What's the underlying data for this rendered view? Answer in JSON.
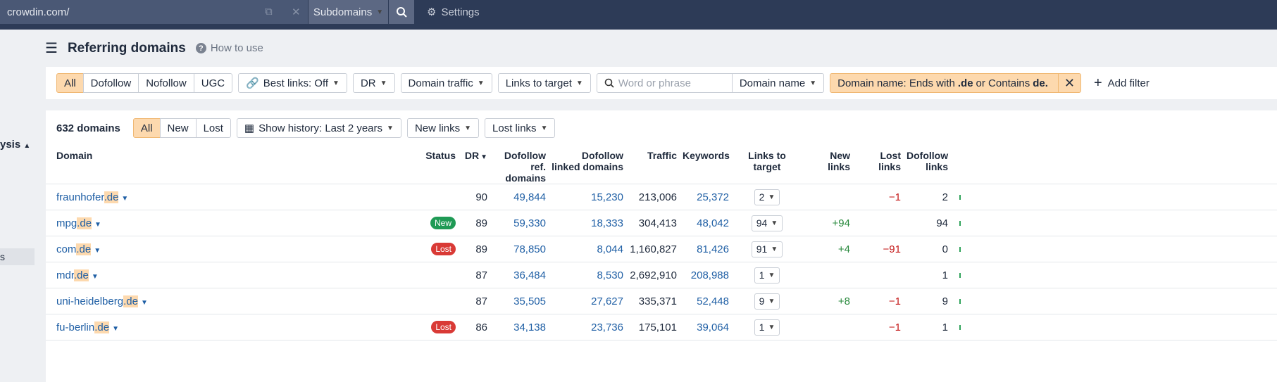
{
  "top_bar": {
    "url": "crowdin.com/",
    "mode": "Subdomains",
    "settings": "Settings"
  },
  "sidebar": {
    "section": "ysis",
    "item": "s"
  },
  "header": {
    "title": "Referring domains",
    "help": "How to use"
  },
  "filters": {
    "link_types": [
      "All",
      "Dofollow",
      "Nofollow",
      "UGC"
    ],
    "best_links": "Best links: Off",
    "dr": "DR",
    "domain_traffic": "Domain traffic",
    "links_to_target": "Links to target",
    "search_placeholder": "Word or phrase",
    "search_field": "Domain name",
    "active_filter": [
      "Domain name: Ends with",
      ".de",
      "or Contains",
      "de."
    ],
    "add_filter": "Add filter"
  },
  "summary": {
    "count": "632 domains",
    "status_tabs": [
      "All",
      "New",
      "Lost"
    ],
    "history": "Show history: Last 2 years",
    "new_links": "New links",
    "lost_links": "Lost links"
  },
  "table": {
    "columns": [
      "Domain",
      "Status",
      "DR",
      "Dofollow ref. domains",
      "Dofollow linked domains",
      "Traffic",
      "Keywords",
      "Links to target",
      "New links",
      "Lost links",
      "Dofollow links"
    ],
    "rows": [
      {
        "domain": "fraunhofer",
        "tld": ".de",
        "status": null,
        "dr": "90",
        "dofollow_ref_domains": "49,844",
        "dofollow_linked_domains": "15,230",
        "traffic": "213,006",
        "keywords": "25,372",
        "links_to_target": "2",
        "new_links": null,
        "lost_links": "−1",
        "dofollow_links": "2"
      },
      {
        "domain": "mpg",
        "tld": ".de",
        "status": "New",
        "dr": "89",
        "dofollow_ref_domains": "59,330",
        "dofollow_linked_domains": "18,333",
        "traffic": "304,413",
        "keywords": "48,042",
        "links_to_target": "94",
        "new_links": "+94",
        "lost_links": null,
        "dofollow_links": "94"
      },
      {
        "domain": "com",
        "tld": ".de",
        "status": "Lost",
        "dr": "89",
        "dofollow_ref_domains": "78,850",
        "dofollow_linked_domains": "8,044",
        "traffic": "1,160,827",
        "keywords": "81,426",
        "links_to_target": "91",
        "new_links": "+4",
        "lost_links": "−91",
        "dofollow_links": "0"
      },
      {
        "domain": "mdr",
        "tld": ".de",
        "status": null,
        "dr": "87",
        "dofollow_ref_domains": "36,484",
        "dofollow_linked_domains": "8,530",
        "traffic": "2,692,910",
        "keywords": "208,988",
        "links_to_target": "1",
        "new_links": null,
        "lost_links": null,
        "dofollow_links": "1"
      },
      {
        "domain": "uni-heidelberg",
        "tld": ".de",
        "status": null,
        "dr": "87",
        "dofollow_ref_domains": "35,505",
        "dofollow_linked_domains": "27,627",
        "traffic": "335,371",
        "keywords": "52,448",
        "links_to_target": "9",
        "new_links": "+8",
        "lost_links": "−1",
        "dofollow_links": "9"
      },
      {
        "domain": "fu-berlin",
        "tld": ".de",
        "status": "Lost",
        "dr": "86",
        "dofollow_ref_domains": "34,138",
        "dofollow_linked_domains": "23,736",
        "traffic": "175,101",
        "keywords": "39,064",
        "links_to_target": "1",
        "new_links": null,
        "lost_links": "−1",
        "dofollow_links": "1"
      }
    ]
  }
}
